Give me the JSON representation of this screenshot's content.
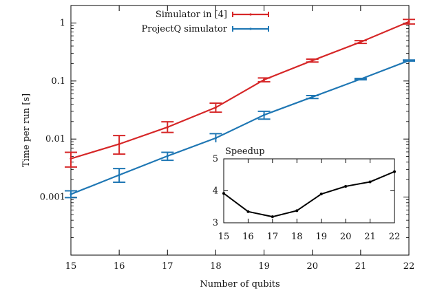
{
  "chart_data": [
    {
      "type": "line",
      "scale": "log-y",
      "xlabel": "Number of qubits",
      "ylabel": "Time per run [s]",
      "x": [
        15,
        16,
        17,
        18,
        19,
        20,
        21,
        22
      ],
      "xlim": [
        15,
        22
      ],
      "ylim": [
        0.0001,
        2
      ],
      "x_ticks": [
        "15",
        "16",
        "17",
        "18",
        "19",
        "20",
        "21",
        "22"
      ],
      "y_ticks": [
        {
          "value": 0.001,
          "label": "0.001"
        },
        {
          "value": 0.01,
          "label": "0.01"
        },
        {
          "value": 0.1,
          "label": "0.1"
        },
        {
          "value": 1,
          "label": "1"
        }
      ],
      "legend_position": "top-right",
      "series": [
        {
          "name": "Simulator in [4]",
          "color": "#d62728",
          "values": [
            0.0046,
            0.0082,
            0.016,
            0.035,
            0.105,
            0.225,
            0.47,
            1.05
          ],
          "err_low": [
            0.0033,
            0.0055,
            0.013,
            0.029,
            0.097,
            0.212,
            0.445,
            0.96
          ],
          "err_high": [
            0.0059,
            0.0115,
            0.0198,
            0.0415,
            0.113,
            0.238,
            0.495,
            1.15
          ]
        },
        {
          "name": "ProjectQ simulator",
          "color": "#1f77b4",
          "values": [
            0.00112,
            0.0024,
            0.0051,
            0.0104,
            0.026,
            0.053,
            0.108,
            0.225
          ],
          "err_low": [
            0.00098,
            0.0018,
            0.0043,
            0.0085,
            0.022,
            0.05,
            0.105,
            0.22
          ],
          "err_high": [
            0.00128,
            0.0031,
            0.0059,
            0.0124,
            0.03,
            0.056,
            0.111,
            0.23
          ]
        }
      ]
    },
    {
      "type": "line",
      "title": "Speedup",
      "x": [
        15,
        16,
        17,
        18,
        19,
        20,
        21,
        22
      ],
      "values": [
        3.92,
        3.35,
        3.19,
        3.38,
        3.9,
        4.14,
        4.28,
        4.6
      ],
      "xlim": [
        15,
        22
      ],
      "ylim": [
        3,
        5
      ],
      "x_ticks": [
        "15",
        "16",
        "17",
        "18",
        "19",
        "20",
        "21",
        "22"
      ],
      "y_ticks": [
        {
          "value": 3,
          "label": "3"
        },
        {
          "value": 4,
          "label": "4"
        },
        {
          "value": 5,
          "label": "5"
        }
      ],
      "color": "#000000"
    }
  ]
}
